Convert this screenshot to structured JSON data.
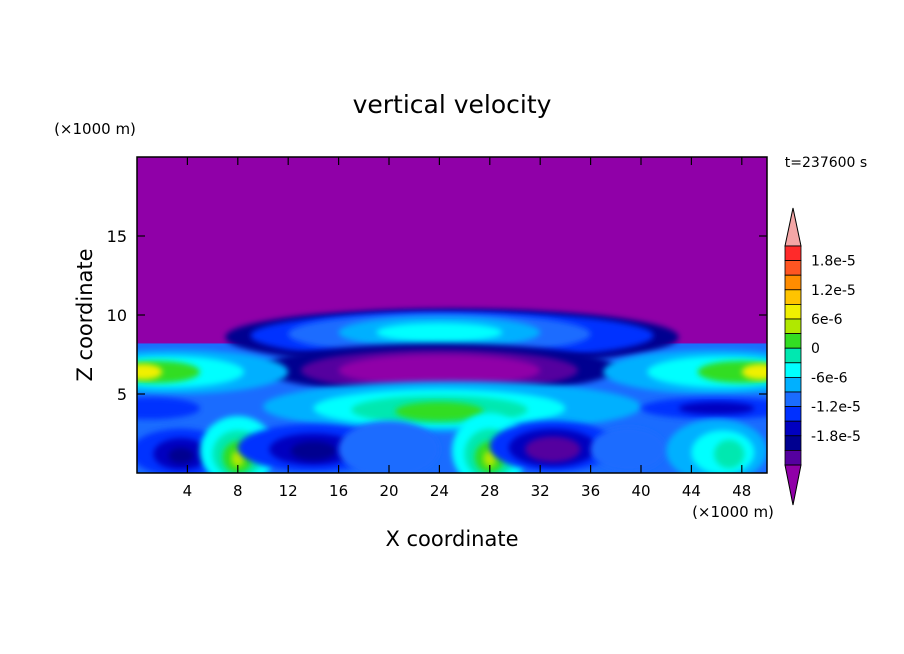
{
  "chart_data": {
    "type": "heatmap",
    "subtype": "filled-contour",
    "title": "vertical velocity",
    "xlabel": "X coordinate",
    "ylabel": "Z coordinate",
    "x_unit": "(×1000 m)",
    "y_unit": "(×1000 m)",
    "time_label": "t=237600 s",
    "xlim": [
      0,
      50
    ],
    "ylim": [
      0,
      20
    ],
    "x_ticks": [
      4,
      8,
      12,
      16,
      20,
      24,
      28,
      32,
      36,
      40,
      44,
      48
    ],
    "y_ticks": [
      5,
      10,
      15
    ],
    "colorbar": {
      "labels": [
        "1.8e-5",
        "1.2e-5",
        "6e-6",
        "0",
        "-6e-6",
        "-1.2e-5",
        "-1.8e-5"
      ],
      "label_values": [
        1.8e-05,
        1.2e-05,
        6e-06,
        0,
        -6e-06,
        -1.2e-05,
        -1.8e-05
      ],
      "levels_top_to_bottom": [
        2.1e-05,
        1.8e-05,
        1.5e-05,
        1.2e-05,
        9e-06,
        6e-06,
        3e-06,
        0,
        -3e-06,
        -6e-06,
        -9e-06,
        -1.2e-05,
        -1.5e-05,
        -1.8e-05
      ],
      "colors_top_to_bottom": [
        "#f4a6a6",
        "#ff2a2a",
        "#ff5522",
        "#ff8c00",
        "#ffc400",
        "#f0f000",
        "#b0e800",
        "#33dd22",
        "#00e8b0",
        "#00ffff",
        "#00b0ff",
        "#1a6cff",
        "#0030ff",
        "#0000c0",
        "#000090",
        "#55009f",
        "#9000a8"
      ],
      "max_triangle_color": "#f4a6a6",
      "min_triangle_color": "#9000a8"
    },
    "field_background_color": "#9000a8",
    "features": [
      {
        "x": 24,
        "z": 8.9,
        "value": -7e-06,
        "sign": "negative"
      },
      {
        "x": 24,
        "z": 6.5,
        "value": -2e-05,
        "sign": "negative"
      },
      {
        "x": 24,
        "z": 4.1,
        "value": 2e-06,
        "sign": "positive"
      },
      {
        "x": 1.5,
        "z": 6.4,
        "value": 3e-06,
        "sign": "positive"
      },
      {
        "x": 48,
        "z": 6.4,
        "value": 3e-06,
        "sign": "positive"
      },
      {
        "x": 8,
        "z": 1.0,
        "value": 3e-06,
        "sign": "positive"
      },
      {
        "x": 28,
        "z": 1.0,
        "value": 4e-06,
        "sign": "positive"
      },
      {
        "x": 3.5,
        "z": 1.2,
        "value": -1.8e-05,
        "sign": "negative"
      },
      {
        "x": 14,
        "z": 1.5,
        "value": -1.6e-05,
        "sign": "negative"
      },
      {
        "x": 33,
        "z": 1.6,
        "value": -1.9e-05,
        "sign": "negative"
      },
      {
        "x": 46,
        "z": 1.3,
        "value": -5e-06,
        "sign": "negative"
      },
      {
        "x": 1,
        "z": 4.0,
        "value": -1.2e-05,
        "sign": "negative"
      },
      {
        "x": 46,
        "z": 4.0,
        "value": -1.2e-05,
        "sign": "negative"
      }
    ]
  }
}
